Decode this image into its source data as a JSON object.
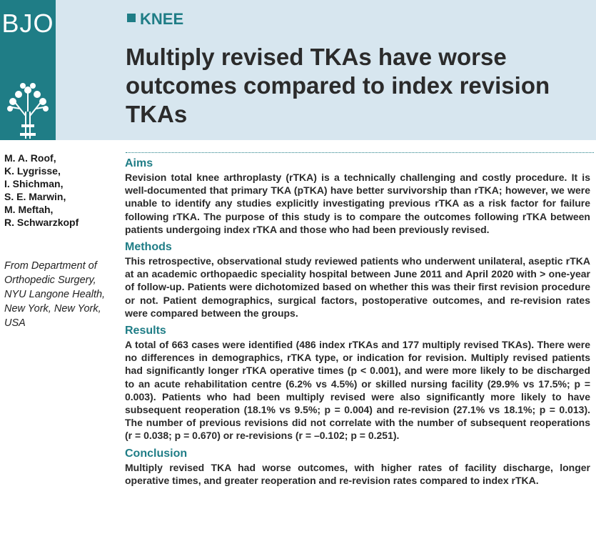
{
  "journal": {
    "logo": "BJO",
    "section": "KNEE"
  },
  "title": "Multiply revised TKAs have worse outcomes compared to index revision TKAs",
  "authors": [
    "M. A. Roof,",
    "K. Lygrisse,",
    "I. Shichman,",
    "S. E. Marwin,",
    "M. Meftah,",
    "R. Schwarzkopf"
  ],
  "affiliation": "From Department of Orthopedic Surgery, NYU Langone Health, New York, New York, USA",
  "sections": [
    {
      "heading": "Aims",
      "text": "Revision total knee arthroplasty (rTKA) is a technically challenging and costly procedure. It is well-documented that primary TKA (pTKA) have better survivorship than rTKA; however, we were unable to identify any studies explicitly investigating previous rTKA as a risk factor for failure following rTKA. The purpose of this study is to compare the outcomes following rTKA between patients undergoing index rTKA and those who had been previously revised."
    },
    {
      "heading": "Methods",
      "text": "This retrospective, observational study reviewed patients who underwent unilateral, aseptic rTKA at an academic orthopaedic speciality hospital between June 2011 and April 2020 with > one-year of follow-up. Patients were dichotomized based on whether this was their first revision procedure or not. Patient demographics, surgical factors, postoperative outcomes, and re-revision rates were compared between the groups."
    },
    {
      "heading": "Results",
      "text": "A total of 663 cases were identified (486 index rTKAs and 177 multiply revised TKAs). There were no differences in demographics, rTKA type, or indication for revision. Multiply revised patients had significantly longer rTKA operative times (p < 0.001), and were more likely to be discharged to an acute rehabilitation centre (6.2% vs 4.5%) or skilled nursing facility (29.9% vs 17.5%; p = 0.003). Patients who had been multiply revised were also significantly more likely to have subsequent reoperation (18.1% vs 9.5%; p = 0.004) and re-revision (27.1% vs 18.1%; p = 0.013). The number of previous revisions did not correlate with the number of subsequent reoperations (r = 0.038; p = 0.670) or re-revisions (r = –0.102; p = 0.251)."
    },
    {
      "heading": "Conclusion",
      "text": "Multiply revised TKA had worse outcomes, with higher rates of facility discharge, longer operative times, and greater reoperation and re-revision rates compared to index rTKA."
    }
  ]
}
